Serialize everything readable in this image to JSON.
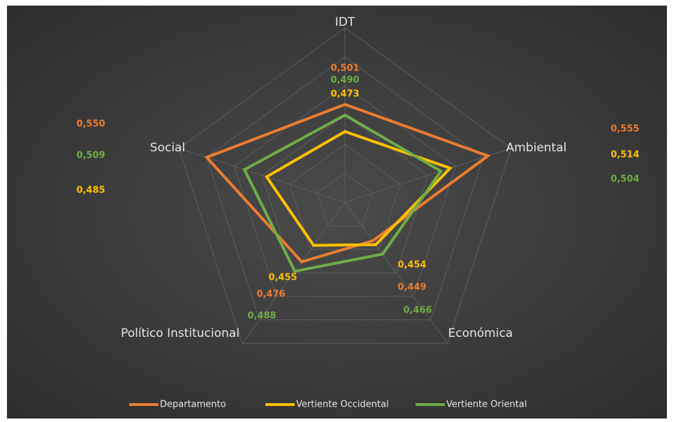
{
  "chart_data": {
    "type": "radar",
    "categories": [
      "IDT",
      "Ambiental",
      "Económica",
      "Político Institucional",
      "Social"
    ],
    "series": [
      {
        "name": "Departamento",
        "color": "#ed7d31",
        "values": [
          0.501,
          0.555,
          0.449,
          0.476,
          0.55
        ],
        "value_labels": [
          "0,501",
          "0,555",
          "0,449",
          "0,476",
          "0,550"
        ]
      },
      {
        "name": "Vertiente Occidental",
        "color": "#ffc000",
        "values": [
          0.473,
          0.514,
          0.454,
          0.455,
          0.485
        ],
        "value_labels": [
          "0,473",
          "0,514",
          "0,454",
          "0,455",
          "0,485"
        ]
      },
      {
        "name": "Vertiente Oriental",
        "color": "#70ad47",
        "values": [
          0.49,
          0.504,
          0.466,
          0.488,
          0.509
        ],
        "value_labels": [
          "0,490",
          "0,504",
          "0,466",
          "0,488",
          "0,509"
        ]
      }
    ],
    "rlim": [
      0.4,
      0.58
    ],
    "rticks": [
      0.43,
      0.46,
      0.49,
      0.52,
      0.55,
      0.58
    ],
    "grid": true,
    "legend": "bottom"
  }
}
